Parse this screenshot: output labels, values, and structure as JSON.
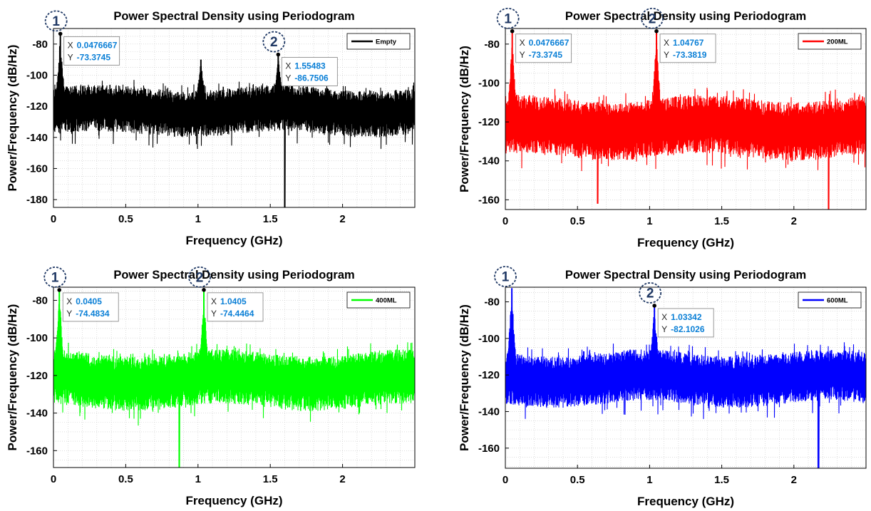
{
  "chart_data": [
    {
      "type": "line",
      "title": "Power Spectral Density using Periodogram",
      "xlabel": "Frequency (GHz)",
      "ylabel": "Power/Frequency (dB/Hz)",
      "xlim": [
        0,
        2.5
      ],
      "ylim": [
        -185,
        -70
      ],
      "xticks": [
        0,
        0.5,
        1,
        1.5,
        2
      ],
      "xtick_labels": [
        "0",
        "0.5",
        "1",
        "1.5",
        "2"
      ],
      "yticks": [
        -80,
        -100,
        -120,
        -140,
        -160,
        -180
      ],
      "ytick_labels": [
        "-80",
        "-100",
        "-120",
        "-140",
        "-160",
        "-180"
      ],
      "grid": true,
      "legend_position": "top-right",
      "series": [
        {
          "name": "Empty",
          "color": "#000000",
          "floor": -122,
          "top_spread": 14,
          "bottom_spread": 16,
          "features": [
            {
              "x": 0.0476667,
              "y": -73.3745
            },
            {
              "x": 1.55483,
              "y": -86.7506
            },
            {
              "x": 1.02,
              "y": -90
            },
            {
              "x": 1.6,
              "y": -185
            }
          ]
        }
      ],
      "datatips": [
        {
          "marker": "1",
          "x_label": "X",
          "y_label": "Y",
          "x": 0.0476667,
          "y": -73.3745,
          "x_text": "0.0476667",
          "y_text": "-73.3745"
        },
        {
          "marker": "2",
          "x_label": "X",
          "y_label": "Y",
          "x": 1.55483,
          "y": -86.7506,
          "x_text": "1.55483",
          "y_text": "-86.7506"
        }
      ]
    },
    {
      "type": "line",
      "title": "Power Spectral Density using Periodogram",
      "xlabel": "Frequency (GHz)",
      "ylabel": "Power/Frequency (dB/Hz)",
      "xlim": [
        0,
        2.5
      ],
      "ylim": [
        -165,
        -72
      ],
      "xticks": [
        0,
        0.5,
        1,
        1.5,
        2
      ],
      "xtick_labels": [
        "0",
        "0.5",
        "1",
        "1.5",
        "2"
      ],
      "yticks": [
        -80,
        -100,
        -120,
        -140,
        -160
      ],
      "ytick_labels": [
        "-80",
        "-100",
        "-120",
        "-140",
        "-160"
      ],
      "grid": true,
      "legend_position": "top-right",
      "series": [
        {
          "name": "200ML",
          "color": "#ff0000",
          "floor": -122,
          "top_spread": 14,
          "bottom_spread": 16,
          "features": [
            {
              "x": 0.0476667,
              "y": -73.3745
            },
            {
              "x": 1.04767,
              "y": -73.3819
            },
            {
              "x": 0.64,
              "y": -162
            },
            {
              "x": 2.24,
              "y": -165
            }
          ]
        }
      ],
      "datatips": [
        {
          "marker": "1",
          "x_label": "X",
          "y_label": "Y",
          "x": 0.0476667,
          "y": -73.3745,
          "x_text": "0.0476667",
          "y_text": "-73.3745"
        },
        {
          "marker": "2",
          "x_label": "X",
          "y_label": "Y",
          "x": 1.04767,
          "y": -73.3819,
          "x_text": "1.04767",
          "y_text": "-73.3819"
        }
      ]
    },
    {
      "type": "line",
      "title": "Power Spectral Density using Periodogram",
      "xlabel": "Frequency (GHz)",
      "ylabel": "Power/Frequency (dB/Hz)",
      "xlim": [
        0,
        2.5
      ],
      "ylim": [
        -169,
        -73
      ],
      "xticks": [
        0,
        0.5,
        1,
        1.5,
        2
      ],
      "xtick_labels": [
        "0",
        "0.5",
        "1",
        "1.5",
        "2"
      ],
      "yticks": [
        -80,
        -100,
        -120,
        -140,
        -160
      ],
      "ytick_labels": [
        "-80",
        "-100",
        "-120",
        "-140",
        "-160"
      ],
      "grid": true,
      "legend_position": "top-right",
      "series": [
        {
          "name": "400ML",
          "color": "#00ff00",
          "floor": -121,
          "top_spread": 13,
          "bottom_spread": 16,
          "features": [
            {
              "x": 0.0405,
              "y": -74.4834
            },
            {
              "x": 1.0405,
              "y": -74.4464
            },
            {
              "x": 0.87,
              "y": -169
            }
          ]
        }
      ],
      "datatips": [
        {
          "marker": "1",
          "x_label": "X",
          "y_label": "Y",
          "x": 0.0405,
          "y": -74.4834,
          "x_text": "0.0405",
          "y_text": "-74.4834"
        },
        {
          "marker": "2",
          "x_label": "X",
          "y_label": "Y",
          "x": 1.0405,
          "y": -74.4464,
          "x_text": "1.0405",
          "y_text": "-74.4464"
        }
      ]
    },
    {
      "type": "line",
      "title": "Power Spectral Density using Periodogram",
      "xlabel": "Frequency (GHz)",
      "ylabel": "Power/Frequency (dB/Hz)",
      "xlim": [
        0,
        2.5
      ],
      "ylim": [
        -171,
        -72
      ],
      "xticks": [
        0,
        0.5,
        1,
        1.5,
        2
      ],
      "xtick_labels": [
        "0",
        "0.5",
        "1",
        "1.5",
        "2"
      ],
      "yticks": [
        -80,
        -100,
        -120,
        -140,
        -160
      ],
      "ytick_labels": [
        "-80",
        "-100",
        "-120",
        "-140",
        "-160"
      ],
      "grid": true,
      "legend_position": "top-right",
      "series": [
        {
          "name": "600ML",
          "color": "#0000ff",
          "floor": -121,
          "top_spread": 13,
          "bottom_spread": 15,
          "features": [
            {
              "x": 0.045,
              "y": -72.5
            },
            {
              "x": 1.03342,
              "y": -82.1026
            },
            {
              "x": 2.17,
              "y": -171
            }
          ]
        }
      ],
      "datatips": [
        {
          "marker": "1",
          "x_label": "",
          "y_label": "",
          "x": 0.0,
          "y": -72.0,
          "x_text": "",
          "y_text": ""
        },
        {
          "marker": "2",
          "x_label": "X",
          "y_label": "Y",
          "x": 1.03342,
          "y": -82.1026,
          "x_text": "1.03342",
          "y_text": "-82.1026"
        }
      ]
    }
  ]
}
